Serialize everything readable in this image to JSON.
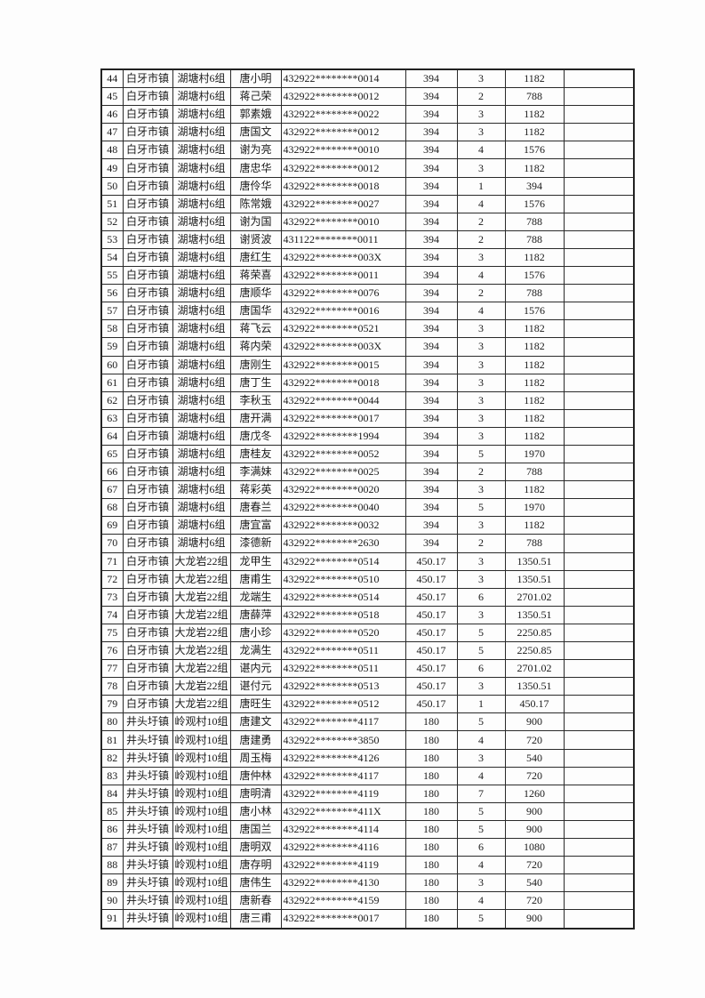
{
  "rows": [
    [
      "44",
      "白牙市镇",
      "湖塘村6组",
      "唐小明",
      "432922********0014",
      "394",
      "3",
      "1182",
      ""
    ],
    [
      "45",
      "白牙市镇",
      "湖塘村6组",
      "蒋己荣",
      "432922********0012",
      "394",
      "2",
      "788",
      ""
    ],
    [
      "46",
      "白牙市镇",
      "湖塘村6组",
      "郭素娥",
      "432922********0022",
      "394",
      "3",
      "1182",
      ""
    ],
    [
      "47",
      "白牙市镇",
      "湖塘村6组",
      "唐国文",
      "432922********0012",
      "394",
      "3",
      "1182",
      ""
    ],
    [
      "48",
      "白牙市镇",
      "湖塘村6组",
      "谢为亮",
      "432922********0010",
      "394",
      "4",
      "1576",
      ""
    ],
    [
      "49",
      "白牙市镇",
      "湖塘村6组",
      "唐忠华",
      "432922********0012",
      "394",
      "3",
      "1182",
      ""
    ],
    [
      "50",
      "白牙市镇",
      "湖塘村6组",
      "唐伶华",
      "432922********0018",
      "394",
      "1",
      "394",
      ""
    ],
    [
      "51",
      "白牙市镇",
      "湖塘村6组",
      "陈常娥",
      "432922********0027",
      "394",
      "4",
      "1576",
      ""
    ],
    [
      "52",
      "白牙市镇",
      "湖塘村6组",
      "谢为国",
      "432922********0010",
      "394",
      "2",
      "788",
      ""
    ],
    [
      "53",
      "白牙市镇",
      "湖塘村6组",
      "谢贤波",
      "431122********0011",
      "394",
      "2",
      "788",
      ""
    ],
    [
      "54",
      "白牙市镇",
      "湖塘村6组",
      "唐红生",
      "432922********003X",
      "394",
      "3",
      "1182",
      ""
    ],
    [
      "55",
      "白牙市镇",
      "湖塘村6组",
      "蒋荣喜",
      "432922********0011",
      "394",
      "4",
      "1576",
      ""
    ],
    [
      "56",
      "白牙市镇",
      "湖塘村6组",
      "唐顺华",
      "432922********0076",
      "394",
      "2",
      "788",
      ""
    ],
    [
      "57",
      "白牙市镇",
      "湖塘村6组",
      "唐国华",
      "432922********0016",
      "394",
      "4",
      "1576",
      ""
    ],
    [
      "58",
      "白牙市镇",
      "湖塘村6组",
      "蒋飞云",
      "432922********0521",
      "394",
      "3",
      "1182",
      ""
    ],
    [
      "59",
      "白牙市镇",
      "湖塘村6组",
      "蒋内荣",
      "432922********003X",
      "394",
      "3",
      "1182",
      ""
    ],
    [
      "60",
      "白牙市镇",
      "湖塘村6组",
      "唐刚生",
      "432922********0015",
      "394",
      "3",
      "1182",
      ""
    ],
    [
      "61",
      "白牙市镇",
      "湖塘村6组",
      "唐丁生",
      "432922********0018",
      "394",
      "3",
      "1182",
      ""
    ],
    [
      "62",
      "白牙市镇",
      "湖塘村6组",
      "李秋玉",
      "432922********0044",
      "394",
      "3",
      "1182",
      ""
    ],
    [
      "63",
      "白牙市镇",
      "湖塘村6组",
      "唐开满",
      "432922********0017",
      "394",
      "3",
      "1182",
      ""
    ],
    [
      "64",
      "白牙市镇",
      "湖塘村6组",
      "唐戊冬",
      "432922********1994",
      "394",
      "3",
      "1182",
      ""
    ],
    [
      "65",
      "白牙市镇",
      "湖塘村6组",
      "唐桂友",
      "432922********0052",
      "394",
      "5",
      "1970",
      ""
    ],
    [
      "66",
      "白牙市镇",
      "湖塘村6组",
      "李满妹",
      "432922********0025",
      "394",
      "2",
      "788",
      ""
    ],
    [
      "67",
      "白牙市镇",
      "湖塘村6组",
      "蒋彩英",
      "432922********0020",
      "394",
      "3",
      "1182",
      ""
    ],
    [
      "68",
      "白牙市镇",
      "湖塘村6组",
      "唐春兰",
      "432922********0040",
      "394",
      "5",
      "1970",
      ""
    ],
    [
      "69",
      "白牙市镇",
      "湖塘村6组",
      "唐宜富",
      "432922********0032",
      "394",
      "3",
      "1182",
      ""
    ],
    [
      "70",
      "白牙市镇",
      "湖塘村6组",
      "漆德新",
      "432922********2630",
      "394",
      "2",
      "788",
      ""
    ],
    [
      "71",
      "白牙市镇",
      "大龙岩22组",
      "龙甲生",
      "432922********0514",
      "450.17",
      "3",
      "1350.51",
      ""
    ],
    [
      "72",
      "白牙市镇",
      "大龙岩22组",
      "唐甫生",
      "432922********0510",
      "450.17",
      "3",
      "1350.51",
      ""
    ],
    [
      "73",
      "白牙市镇",
      "大龙岩22组",
      "龙端生",
      "432922********0514",
      "450.17",
      "6",
      "2701.02",
      ""
    ],
    [
      "74",
      "白牙市镇",
      "大龙岩22组",
      "唐薛萍",
      "432922********0518",
      "450.17",
      "3",
      "1350.51",
      ""
    ],
    [
      "75",
      "白牙市镇",
      "大龙岩22组",
      "唐小珍",
      "432922********0520",
      "450.17",
      "5",
      "2250.85",
      ""
    ],
    [
      "76",
      "白牙市镇",
      "大龙岩22组",
      "龙满生",
      "432922********0511",
      "450.17",
      "5",
      "2250.85",
      ""
    ],
    [
      "77",
      "白牙市镇",
      "大龙岩22组",
      "谌内元",
      "432922********0511",
      "450.17",
      "6",
      "2701.02",
      ""
    ],
    [
      "78",
      "白牙市镇",
      "大龙岩22组",
      "谌付元",
      "432922********0513",
      "450.17",
      "3",
      "1350.51",
      ""
    ],
    [
      "79",
      "白牙市镇",
      "大龙岩22组",
      "唐旺生",
      "432922********0512",
      "450.17",
      "1",
      "450.17",
      ""
    ],
    [
      "80",
      "井头圩镇",
      "岭观村10组",
      "唐建文",
      "432922********4117",
      "180",
      "5",
      "900",
      ""
    ],
    [
      "81",
      "井头圩镇",
      "岭观村10组",
      "唐建勇",
      "432922********3850",
      "180",
      "4",
      "720",
      ""
    ],
    [
      "82",
      "井头圩镇",
      "岭观村10组",
      "周玉梅",
      "432922********4126",
      "180",
      "3",
      "540",
      ""
    ],
    [
      "83",
      "井头圩镇",
      "岭观村10组",
      "唐仲林",
      "432922********4117",
      "180",
      "4",
      "720",
      ""
    ],
    [
      "84",
      "井头圩镇",
      "岭观村10组",
      "唐明清",
      "432922********4119",
      "180",
      "7",
      "1260",
      ""
    ],
    [
      "85",
      "井头圩镇",
      "岭观村10组",
      "唐小林",
      "432922********411X",
      "180",
      "5",
      "900",
      ""
    ],
    [
      "86",
      "井头圩镇",
      "岭观村10组",
      "唐国兰",
      "432922********4114",
      "180",
      "5",
      "900",
      ""
    ],
    [
      "87",
      "井头圩镇",
      "岭观村10组",
      "唐明双",
      "432922********4116",
      "180",
      "6",
      "1080",
      ""
    ],
    [
      "88",
      "井头圩镇",
      "岭观村10组",
      "唐存明",
      "432922********4119",
      "180",
      "4",
      "720",
      ""
    ],
    [
      "89",
      "井头圩镇",
      "岭观村10组",
      "唐伟生",
      "432922********4130",
      "180",
      "3",
      "540",
      ""
    ],
    [
      "90",
      "井头圩镇",
      "岭观村10组",
      "唐新春",
      "432922********4159",
      "180",
      "4",
      "720",
      ""
    ],
    [
      "91",
      "井头圩镇",
      "岭观村10组",
      "唐三甫",
      "432922********0017",
      "180",
      "5",
      "900",
      ""
    ]
  ]
}
